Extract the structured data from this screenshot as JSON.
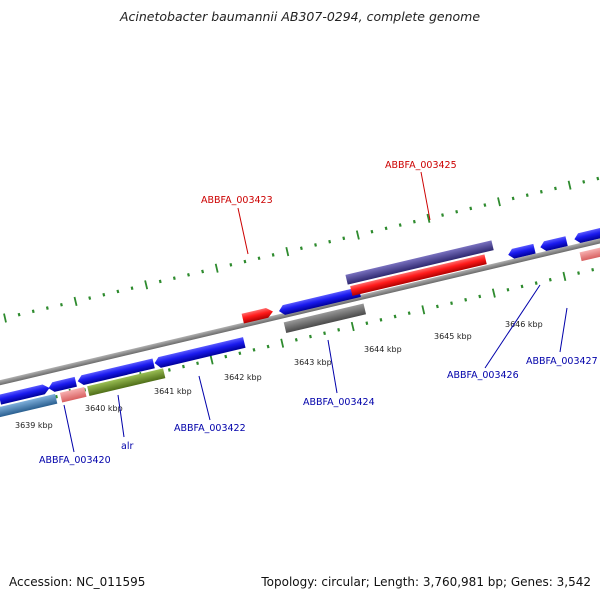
{
  "title": "Acinetobacter baumannii AB307-0294, complete genome",
  "footer": {
    "accession": "Accession: NC_011595",
    "summary": "Topology: circular; Length: 3,760,981 bp; Genes: 3,542"
  },
  "ticks": [
    "3639 kbp",
    "3640 kbp",
    "3641 kbp",
    "3642 kbp",
    "3643 kbp",
    "3644 kbp",
    "3645 kbp",
    "3646 kbp"
  ],
  "gene_labels": {
    "g3420": "ABBFA_003420",
    "alr": "alr",
    "g3422": "ABBFA_003422",
    "g3423": "ABBFA_003423",
    "g3424": "ABBFA_003424",
    "g3425": "ABBFA_003425",
    "g3426": "ABBFA_003426",
    "g3427": "ABBFA_003427"
  },
  "colors": {
    "cds_blue": "#1a1aee",
    "highlight_red": "#ff1a1a",
    "pink": "#f08080",
    "olive": "#6b8e23",
    "slate": "#4682b4",
    "gray": "#6e6e6e",
    "purple": "#4b4490",
    "axis": "#888888",
    "tick_green": "#2e8b2e",
    "label_red": "#cc0000",
    "label_blue": "#0000aa"
  }
}
